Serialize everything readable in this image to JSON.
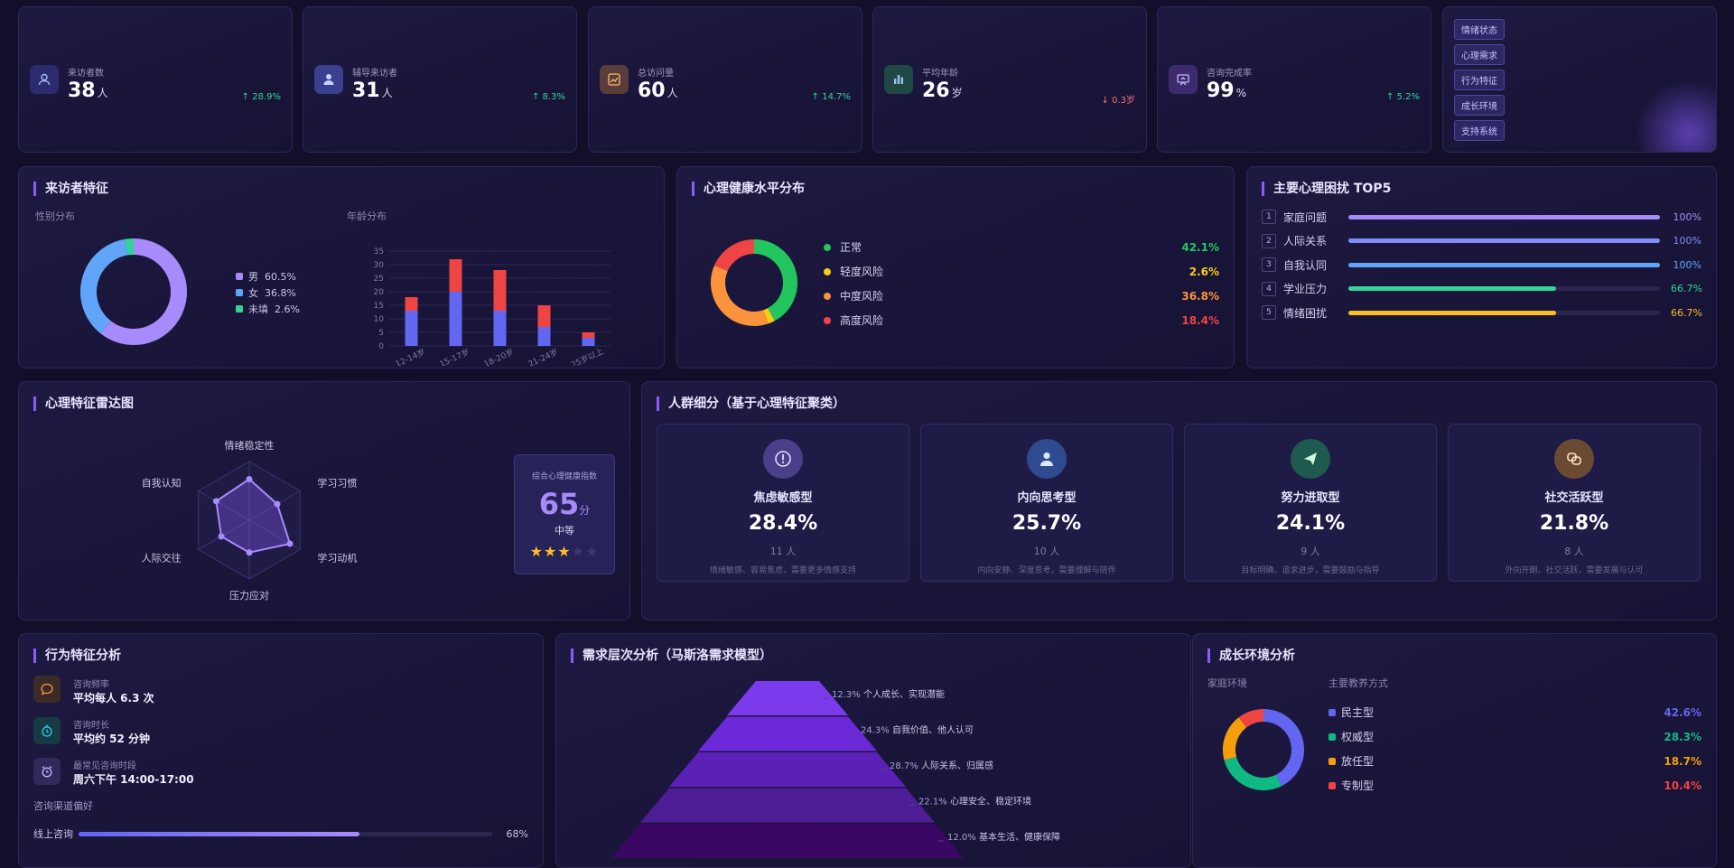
{
  "stats": [
    {
      "label": "来访者数",
      "value": "38",
      "unit": "人",
      "trend": "↑ 28.9%",
      "dir": "up",
      "icon": "user-icon",
      "color": "#2c2b6e",
      "ic": "#a5b4fc"
    },
    {
      "label": "辅导来访者",
      "value": "31",
      "unit": "人",
      "trend": "↑ 8.3%",
      "dir": "up",
      "icon": "person-icon",
      "color": "#3a3f8f",
      "ic": "#c7d2fe"
    },
    {
      "label": "总访问量",
      "value": "60",
      "unit": "人",
      "trend": "↑ 14.7%",
      "dir": "up",
      "icon": "trend-chart-icon",
      "color": "#5a3d3a",
      "ic": "#fdba74"
    },
    {
      "label": "平均年龄",
      "value": "26",
      "unit": "岁",
      "trend": "↓ 0.3岁",
      "dir": "down",
      "icon": "bar-chart-icon",
      "color": "#1f4744",
      "ic": "#93c5fd"
    },
    {
      "label": "咨询完成率",
      "value": "99",
      "unit": "%",
      "trend": "↑ 5.2%",
      "dir": "up",
      "icon": "presentation-icon",
      "color": "#3d2b6e",
      "ic": "#c4b5fd"
    }
  ],
  "tags": [
    "情绪状态",
    "心理需求",
    "行为特征",
    "成长环境",
    "支持系统"
  ],
  "visitor": {
    "title": "来访者特征",
    "gender_label": "性别分布",
    "age_label": "年龄分布",
    "gender": [
      {
        "name": "男",
        "pct": "60.5%",
        "value": 60.5,
        "color": "#a78bfa"
      },
      {
        "name": "女",
        "pct": "36.8%",
        "value": 36.8,
        "color": "#60a5fa"
      },
      {
        "name": "未填",
        "pct": "2.6%",
        "value": 2.6,
        "color": "#34d399"
      }
    ]
  },
  "chart_data": {
    "type": "bar",
    "categories": [
      "12-14岁",
      "15-17岁",
      "18-20岁",
      "21-24岁",
      "25岁以上"
    ],
    "series": [
      {
        "values": [
          13,
          20,
          13,
          7,
          3
        ],
        "color": "#6366f1"
      },
      {
        "values": [
          5,
          12,
          15,
          8,
          2
        ],
        "color": "#ef4444"
      }
    ],
    "ylim": [
      0,
      35
    ],
    "yticks": [
      "0",
      "5",
      "10",
      "15",
      "20",
      "25",
      "30",
      "35"
    ]
  },
  "health": {
    "title": "心理健康水平分布",
    "items": [
      {
        "name": "正常",
        "pct": "42.1%",
        "value": 42.1,
        "color": "#22c55e"
      },
      {
        "name": "轻度风险",
        "pct": "2.6%",
        "value": 2.6,
        "color": "#facc15"
      },
      {
        "name": "中度风险",
        "pct": "36.8%",
        "value": 36.8,
        "color": "#fb923c"
      },
      {
        "name": "高度风险",
        "pct": "18.4%",
        "value": 18.4,
        "color": "#ef4444"
      }
    ]
  },
  "top5": {
    "title": "主要心理困扰 TOP5",
    "items": [
      {
        "rank": "1",
        "name": "家庭问题",
        "pct": "100%",
        "value": 100,
        "color": "#a78bfa"
      },
      {
        "rank": "2",
        "name": "人际关系",
        "pct": "100%",
        "value": 100,
        "color": "#818cf8"
      },
      {
        "rank": "3",
        "name": "自我认同",
        "pct": "100%",
        "value": 100,
        "color": "#60a5fa"
      },
      {
        "rank": "4",
        "name": "学业压力",
        "pct": "66.7%",
        "value": 66.7,
        "color": "#34d399"
      },
      {
        "rank": "5",
        "name": "情绪困扰",
        "pct": "66.7%",
        "value": 66.7,
        "color": "#fbbf24"
      }
    ]
  },
  "radar": {
    "title": "心理特征雷达图",
    "axes": [
      "情绪稳定性",
      "学习习惯",
      "学习动机",
      "压力应对",
      "人际交往",
      "自我认知"
    ],
    "values": [
      0.7,
      0.55,
      0.8,
      0.55,
      0.55,
      0.65
    ],
    "index_label": "综合心理健康指数",
    "score": "65",
    "score_unit": "分",
    "level": "中等",
    "stars": 3,
    "star_total": 5
  },
  "segments": {
    "title": "人群细分（基于心理特征聚类）",
    "items": [
      {
        "name": "焦虑敏感型",
        "pct": "28.4%",
        "count": "11 人",
        "desc": "情绪敏感、容易焦虑，需要更多情感支持",
        "icon": "alert-icon",
        "bg": "#4b3f8a",
        "fg": "#e0dcff"
      },
      {
        "name": "内向思考型",
        "pct": "25.7%",
        "count": "10 人",
        "desc": "内向安静、深度思考，需要理解与陪伴",
        "icon": "person-icon",
        "bg": "#2f4a8f",
        "fg": "#dbe7ff"
      },
      {
        "name": "努力进取型",
        "pct": "24.1%",
        "count": "9 人",
        "desc": "目标明确、追求进步，需要鼓励与指导",
        "icon": "send-icon",
        "bg": "#1f5a4f",
        "fg": "#d1fae5"
      },
      {
        "name": "社交活跃型",
        "pct": "21.8%",
        "count": "8 人",
        "desc": "外向开朗、社交活跃，需要发展与认可",
        "icon": "link-icon",
        "bg": "#6b4a34",
        "fg": "#fde2c8"
      }
    ]
  },
  "behavior": {
    "title": "行为特征分析",
    "items": [
      {
        "label": "咨询频率",
        "value": "平均每人 6.3 次",
        "icon": "chat-icon",
        "bg": "#3b2a26",
        "fg": "#fb923c"
      },
      {
        "label": "咨询时长",
        "value": "平均约 52 分钟",
        "icon": "timer-icon",
        "bg": "#173a45",
        "fg": "#22d3ee"
      },
      {
        "label": "最常见咨询时段",
        "value": "周六下午 14:00-17:00",
        "icon": "alarm-icon",
        "bg": "#2f2a5c",
        "fg": "#c4b5fd"
      }
    ],
    "channel_label": "咨询渠道偏好",
    "channel": {
      "name": "线上咨询",
      "pct": "68%",
      "value": 68
    }
  },
  "needs": {
    "title": "需求层次分析（马斯洛需求模型）",
    "levels": [
      {
        "pct": "12.3%",
        "label": "个人成长、实现潜能",
        "color": "#7c3aed"
      },
      {
        "pct": "24.3%",
        "label": "自我价值、他人认可",
        "color": "#6d28d9"
      },
      {
        "pct": "28.7%",
        "label": "人际关系、归属感",
        "color": "#5b21b6"
      },
      {
        "pct": "22.1%",
        "label": "心理安全、稳定环境",
        "color": "#4c1d95"
      },
      {
        "pct": "12.0%",
        "label": "基本生活、健康保障",
        "color": "#3b0764"
      }
    ]
  },
  "growth": {
    "title": "成长环境分析",
    "family_label": "家庭环境",
    "style_label": "主要教养方式",
    "items": [
      {
        "name": "民主型",
        "pct": "42.6%",
        "value": 42.6,
        "color": "#6366f1"
      },
      {
        "name": "权威型",
        "pct": "28.3%",
        "value": 28.3,
        "color": "#10b981"
      },
      {
        "name": "放任型",
        "pct": "18.7%",
        "value": 18.7,
        "color": "#f59e0b"
      },
      {
        "name": "专制型",
        "pct": "10.4%",
        "value": 10.4,
        "color": "#ef4444"
      }
    ]
  }
}
